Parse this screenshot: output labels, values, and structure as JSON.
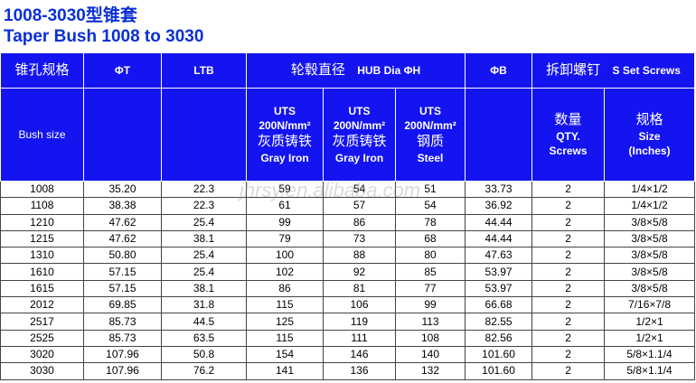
{
  "header": {
    "title_cn": "1008-3030型锥套",
    "title_en": "Taper Bush 1008 to 3030"
  },
  "table": {
    "head1": {
      "bore_cn": "锥孔规格",
      "t": "ΦT",
      "ltb": "LTB",
      "hub_cn": "轮毂直径",
      "hub_en": "HUB Dia ΦH",
      "b": "ΦB",
      "screw_cn": "拆卸螺钉",
      "screw_en": "S Set Screws"
    },
    "head2": {
      "bush_size": "Bush size",
      "hub_cols": [
        [
          "UTS",
          "200N/mm²",
          "灰质铸铁",
          "Gray Iron"
        ],
        [
          "UTS",
          "200N/mm²",
          "灰质铸铁",
          "Gray Iron"
        ],
        [
          "UTS",
          "200N/mm²",
          "钢质",
          "Steel"
        ]
      ],
      "qty": [
        "数量",
        "QTY.",
        "Screws"
      ],
      "size": [
        "规格",
        "Size",
        "(Inches)"
      ]
    },
    "rows": [
      [
        "1008",
        "35.20",
        "22.3",
        "59",
        "54",
        "51",
        "33.73",
        "2",
        "1/4×1/2"
      ],
      [
        "1108",
        "38.38",
        "22.3",
        "61",
        "57",
        "54",
        "36.92",
        "2",
        "1/4×1/2"
      ],
      [
        "1210",
        "47.62",
        "25.4",
        "99",
        "86",
        "78",
        "44.44",
        "2",
        "3/8×5/8"
      ],
      [
        "1215",
        "47.62",
        "38.1",
        "79",
        "73",
        "68",
        "44.44",
        "2",
        "3/8×5/8"
      ],
      [
        "1310",
        "50.80",
        "25.4",
        "100",
        "88",
        "80",
        "47.63",
        "2",
        "3/8×5/8"
      ],
      [
        "1610",
        "57.15",
        "25.4",
        "102",
        "92",
        "85",
        "53.97",
        "2",
        "3/8×5/8"
      ],
      [
        "1615",
        "57.15",
        "38.1",
        "86",
        "81",
        "77",
        "53.97",
        "2",
        "3/8×5/8"
      ],
      [
        "2012",
        "69.85",
        "31.8",
        "115",
        "106",
        "99",
        "66.68",
        "2",
        "7/16×7/8"
      ],
      [
        "2517",
        "85.73",
        "44.5",
        "125",
        "119",
        "113",
        "82.55",
        "2",
        "1/2×1"
      ],
      [
        "2525",
        "85.73",
        "63.5",
        "115",
        "111",
        "108",
        "82.56",
        "2",
        "1/2×1"
      ],
      [
        "3020",
        "107.96",
        "50.8",
        "154",
        "146",
        "140",
        "101.60",
        "2",
        "5/8×1.1/4"
      ],
      [
        "3030",
        "107.96",
        "76.2",
        "141",
        "136",
        "132",
        "101.60",
        "2",
        "5/8×1.1/4"
      ]
    ]
  },
  "watermark": "jhrsy.en.alibaba.com"
}
